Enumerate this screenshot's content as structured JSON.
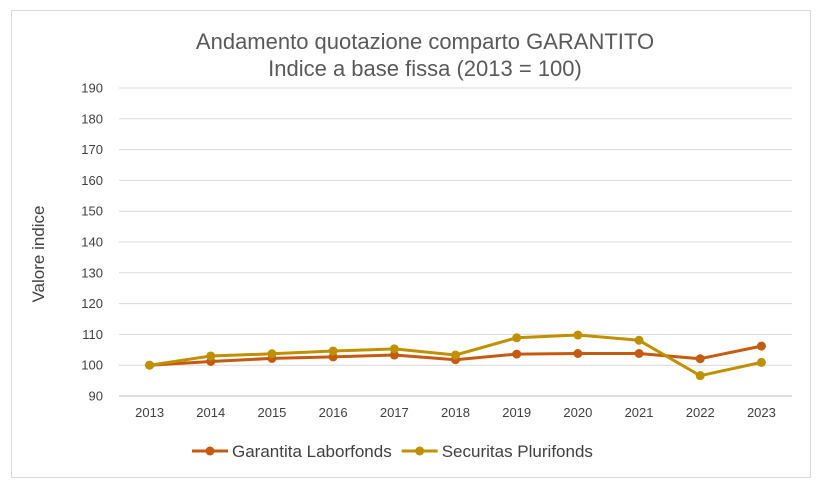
{
  "chart_data": {
    "type": "line",
    "title": "Andamento quotazione comparto GARANTITO",
    "subtitle": "Indice a base fissa (2013 = 100)",
    "xlabel": "",
    "ylabel": "Valore indice",
    "ylim": [
      90,
      190
    ],
    "yticks": [
      90,
      100,
      110,
      120,
      130,
      140,
      150,
      160,
      170,
      180,
      190
    ],
    "grid": true,
    "legend_position": "bottom",
    "categories": [
      "2013",
      "2014",
      "2015",
      "2016",
      "2017",
      "2018",
      "2019",
      "2020",
      "2021",
      "2022",
      "2023"
    ],
    "series": [
      {
        "name": "Garantita Laborfonds",
        "color": "#c55a11",
        "values": [
          100.0,
          101.2,
          102.2,
          102.7,
          103.3,
          101.8,
          103.6,
          103.8,
          103.8,
          102.1,
          106.2
        ]
      },
      {
        "name": "Securitas Plurifonds",
        "color": "#bf9000",
        "values": [
          100.0,
          103.0,
          103.7,
          104.6,
          105.3,
          103.3,
          108.9,
          109.8,
          108.1,
          96.6,
          100.9
        ]
      }
    ]
  }
}
